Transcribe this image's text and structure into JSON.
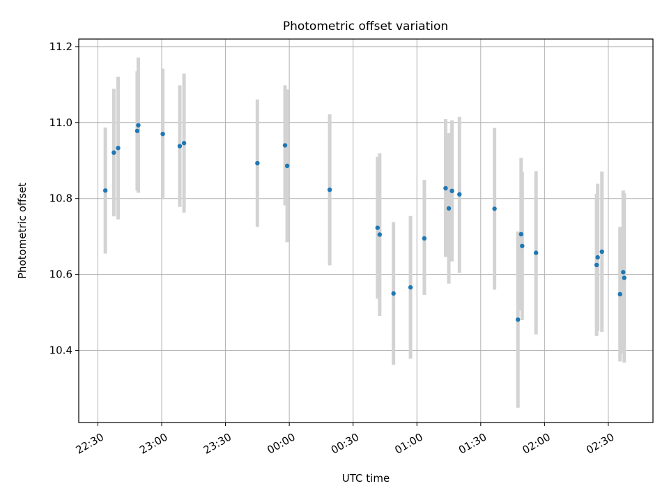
{
  "chart_data": {
    "type": "scatter",
    "title": "Photometric offset variation",
    "xlabel": "UTC time",
    "ylabel": "Photometric offset",
    "x_unit": "UTC time (HH:MM, spanning midnight)",
    "xlim": [
      "22:21",
      "02:51"
    ],
    "ylim": [
      10.21,
      11.22
    ],
    "x_ticks": [
      "22:30",
      "23:00",
      "23:30",
      "00:00",
      "00:30",
      "01:00",
      "01:30",
      "02:00",
      "02:30"
    ],
    "y_ticks": [
      "10.4",
      "10.6",
      "10.8",
      "11.0",
      "11.2"
    ],
    "grid": true,
    "marker_color": "#1f77b4",
    "errorbar_color": "#d3d3d3",
    "points": [
      {
        "x": "22:33:30",
        "y": 10.821,
        "yerr": [
          10.655,
          10.987
        ]
      },
      {
        "x": "22:37:30",
        "y": 10.921,
        "yerr": [
          10.753,
          11.089
        ]
      },
      {
        "x": "22:39:30",
        "y": 10.933,
        "yerr": [
          10.745,
          11.121
        ]
      },
      {
        "x": "22:48:30",
        "y": 10.978,
        "yerr": [
          10.821,
          11.135
        ]
      },
      {
        "x": "22:49:00",
        "y": 10.993,
        "yerr": [
          10.815,
          11.171
        ]
      },
      {
        "x": "23:00:30",
        "y": 10.97,
        "yerr": [
          10.798,
          11.142
        ]
      },
      {
        "x": "23:08:30",
        "y": 10.938,
        "yerr": [
          10.778,
          11.098
        ]
      },
      {
        "x": "23:10:30",
        "y": 10.946,
        "yerr": [
          10.763,
          11.129
        ]
      },
      {
        "x": "23:45:00",
        "y": 10.893,
        "yerr": [
          10.725,
          11.061
        ]
      },
      {
        "x": "23:58:00",
        "y": 10.94,
        "yerr": [
          10.782,
          11.098
        ]
      },
      {
        "x": "23:59:00",
        "y": 10.886,
        "yerr": [
          10.685,
          11.087
        ]
      },
      {
        "x": "00:19:00",
        "y": 10.823,
        "yerr": [
          10.624,
          11.022
        ]
      },
      {
        "x": "00:41:30",
        "y": 10.723,
        "yerr": [
          10.536,
          10.91
        ]
      },
      {
        "x": "00:42:30",
        "y": 10.705,
        "yerr": [
          10.491,
          10.919
        ]
      },
      {
        "x": "00:49:00",
        "y": 10.55,
        "yerr": [
          10.362,
          10.738
        ]
      },
      {
        "x": "00:57:00",
        "y": 10.566,
        "yerr": [
          10.378,
          10.754
        ]
      },
      {
        "x": "01:03:30",
        "y": 10.695,
        "yerr": [
          10.546,
          10.849
        ]
      },
      {
        "x": "01:13:30",
        "y": 10.827,
        "yerr": [
          10.646,
          11.009
        ]
      },
      {
        "x": "01:15:00",
        "y": 10.774,
        "yerr": [
          10.576,
          10.972
        ]
      },
      {
        "x": "01:16:30",
        "y": 10.82,
        "yerr": [
          10.634,
          11.006
        ]
      },
      {
        "x": "01:20:00",
        "y": 10.811,
        "yerr": [
          10.604,
          11.015
        ]
      },
      {
        "x": "01:36:30",
        "y": 10.773,
        "yerr": [
          10.56,
          10.986
        ]
      },
      {
        "x": "01:47:30",
        "y": 10.481,
        "yerr": [
          10.249,
          10.713
        ]
      },
      {
        "x": "01:49:00",
        "y": 10.706,
        "yerr": [
          10.505,
          10.907
        ]
      },
      {
        "x": "01:49:30",
        "y": 10.675,
        "yerr": [
          10.48,
          10.87
        ]
      },
      {
        "x": "01:56:00",
        "y": 10.657,
        "yerr": [
          10.442,
          10.872
        ]
      },
      {
        "x": "02:24:30",
        "y": 10.625,
        "yerr": [
          10.438,
          10.812
        ]
      },
      {
        "x": "02:25:00",
        "y": 10.645,
        "yerr": [
          10.451,
          10.839
        ]
      },
      {
        "x": "02:27:00",
        "y": 10.66,
        "yerr": [
          10.449,
          10.871
        ]
      },
      {
        "x": "02:35:30",
        "y": 10.548,
        "yerr": [
          10.371,
          10.725
        ]
      },
      {
        "x": "02:37:00",
        "y": 10.606,
        "yerr": [
          10.391,
          10.821
        ]
      },
      {
        "x": "02:37:30",
        "y": 10.591,
        "yerr": [
          10.368,
          10.814
        ]
      }
    ]
  }
}
